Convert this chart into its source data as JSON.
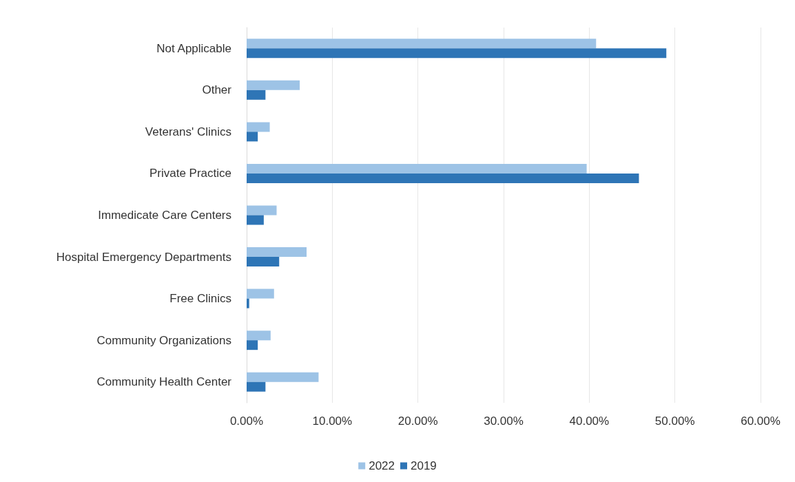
{
  "chart_data": {
    "type": "bar",
    "orientation": "horizontal",
    "categories": [
      "Not Applicable",
      "Other",
      "Veterans' Clinics",
      "Private Practice",
      "Immedicate Care Centers",
      "Hospital Emergency Departments",
      "Free Clinics",
      "Community Organizations",
      "Community Health Center"
    ],
    "series": [
      {
        "name": "2022",
        "color": "#9dc3e6",
        "values": [
          40.8,
          6.2,
          2.7,
          39.7,
          3.5,
          7.0,
          3.2,
          2.8,
          8.4
        ]
      },
      {
        "name": "2019",
        "color": "#2e75b6",
        "values": [
          49.0,
          2.2,
          1.3,
          45.8,
          2.0,
          3.8,
          0.3,
          1.3,
          2.2
        ]
      }
    ],
    "xlim": [
      0,
      60
    ],
    "xticks": [
      {
        "value": 0,
        "label": "0.00%"
      },
      {
        "value": 10,
        "label": "10.00%"
      },
      {
        "value": 20,
        "label": "20.00%"
      },
      {
        "value": 30,
        "label": "30.00%"
      },
      {
        "value": 40,
        "label": "40.00%"
      },
      {
        "value": 50,
        "label": "50.00%"
      },
      {
        "value": 60,
        "label": "60.00%"
      }
    ],
    "grid": "x",
    "legend": "bottom"
  }
}
